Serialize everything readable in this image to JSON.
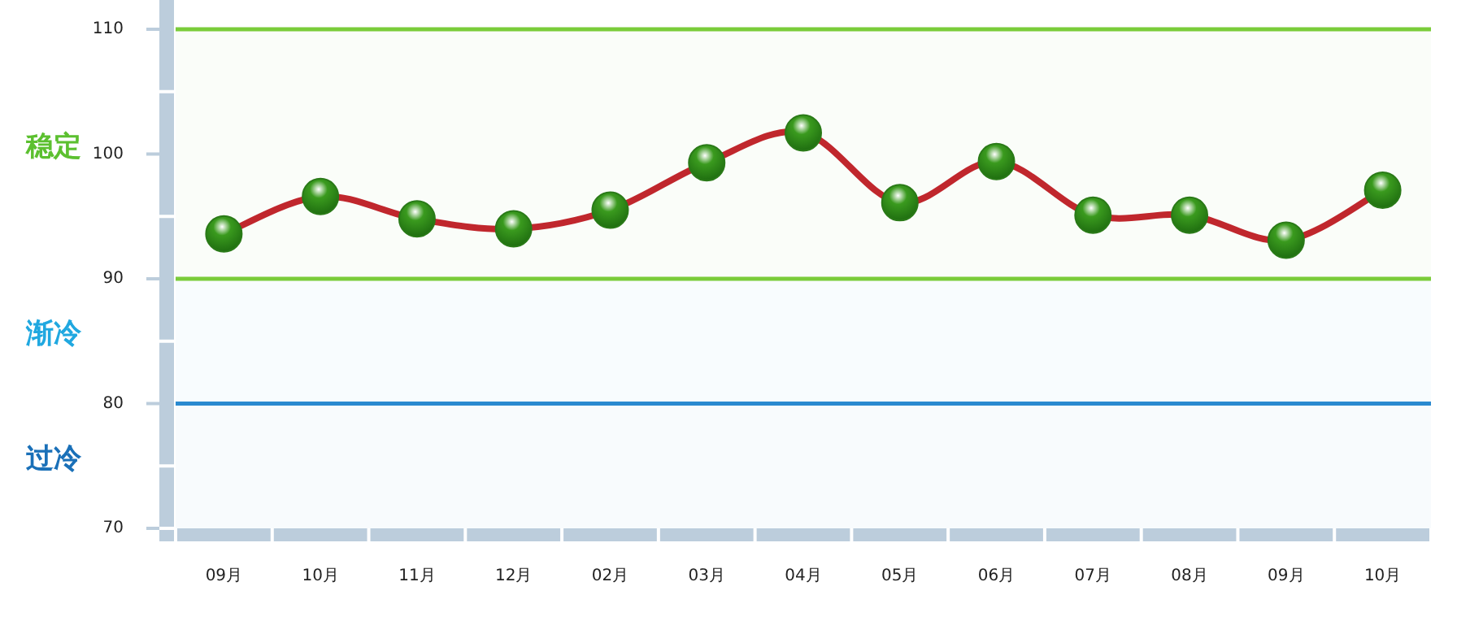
{
  "chart_data": {
    "type": "line",
    "categories": [
      "09月",
      "10月",
      "11月",
      "12月",
      "02月",
      "03月",
      "04月",
      "05月",
      "06月",
      "07月",
      "08月",
      "09月",
      "10月"
    ],
    "series": [
      {
        "color": "#c0272d",
        "values": [
          93.6,
          96.6,
          94.8,
          94.0,
          95.5,
          99.3,
          101.7,
          96.1,
          99.4,
          95.1,
          95.1,
          93.1,
          97.1
        ]
      }
    ],
    "ylim": [
      70,
      110
    ],
    "yticks": [
      70,
      80,
      90,
      100,
      110
    ],
    "ref_lines": [
      {
        "axis": "y",
        "value": 110,
        "color": "#7acc3a"
      },
      {
        "axis": "y",
        "value": 90,
        "color": "#7acc3a"
      },
      {
        "axis": "y",
        "value": 80,
        "color": "#2a8ad0"
      }
    ],
    "bands": [
      {
        "axis": "y",
        "from": 90,
        "to": 110,
        "label": "稳定",
        "color": "#5cc030"
      },
      {
        "axis": "y",
        "from": 80,
        "to": 90,
        "label": "渐冷",
        "color": "#20a8e0"
      },
      {
        "axis": "y",
        "from": 70,
        "to": 80,
        "label": "过冷",
        "color": "#1a70b8"
      }
    ],
    "marker": "circle",
    "line_style": "solid",
    "grid": false
  }
}
